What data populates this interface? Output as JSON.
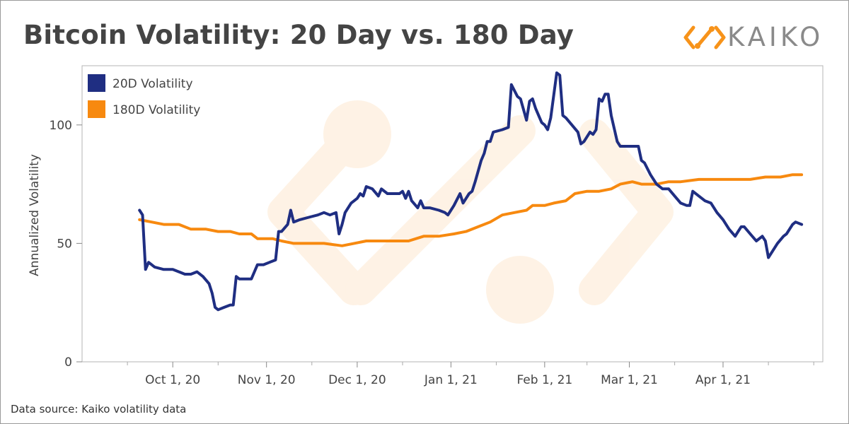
{
  "title": "Bitcoin Volatility: 20 Day vs. 180 Day",
  "brand": {
    "name": "KAIKO",
    "logo_icon": "kaiko-logo-icon",
    "color": "#f7931a"
  },
  "footer": {
    "source": "Data source: Kaiko volatility data"
  },
  "chart_data": {
    "type": "line",
    "title": "Bitcoin Volatility: 20 Day vs. 180 Day",
    "xlabel": "",
    "ylabel": "Annualized Volatility",
    "ylim": [
      0,
      125
    ],
    "yticks": [
      0,
      50,
      100
    ],
    "xrange": [
      "2020-09-01",
      "2021-05-04"
    ],
    "xticks": [
      {
        "date": "2020-10-01",
        "label": "Oct 1, 20"
      },
      {
        "date": "2020-11-01",
        "label": "Nov 1, 20"
      },
      {
        "date": "2020-12-01",
        "label": "Dec 1, 20"
      },
      {
        "date": "2021-01-01",
        "label": "Jan 1, 21"
      },
      {
        "date": "2021-02-01",
        "label": "Feb 1, 21"
      },
      {
        "date": "2021-03-01",
        "label": "Mar 1, 21"
      },
      {
        "date": "2021-04-01",
        "label": "Apr 1, 21"
      }
    ],
    "grid": false,
    "legend": "top-left",
    "series": [
      {
        "name": "20D Volatility",
        "color": "#1f2e82",
        "points": [
          [
            "2020-09-20",
            64
          ],
          [
            "2020-09-21",
            62
          ],
          [
            "2020-09-22",
            39
          ],
          [
            "2020-09-23",
            42
          ],
          [
            "2020-09-25",
            40
          ],
          [
            "2020-09-28",
            39
          ],
          [
            "2020-10-01",
            39
          ],
          [
            "2020-10-03",
            38
          ],
          [
            "2020-10-05",
            37
          ],
          [
            "2020-10-07",
            37
          ],
          [
            "2020-10-09",
            38
          ],
          [
            "2020-10-11",
            36
          ],
          [
            "2020-10-13",
            33
          ],
          [
            "2020-10-14",
            29
          ],
          [
            "2020-10-15",
            23
          ],
          [
            "2020-10-16",
            22
          ],
          [
            "2020-10-18",
            23
          ],
          [
            "2020-10-20",
            24
          ],
          [
            "2020-10-21",
            24
          ],
          [
            "2020-10-22",
            36
          ],
          [
            "2020-10-23",
            35
          ],
          [
            "2020-10-25",
            35
          ],
          [
            "2020-10-27",
            35
          ],
          [
            "2020-10-28",
            38
          ],
          [
            "2020-10-29",
            41
          ],
          [
            "2020-10-31",
            41
          ],
          [
            "2020-11-02",
            42
          ],
          [
            "2020-11-04",
            43
          ],
          [
            "2020-11-05",
            55
          ],
          [
            "2020-11-06",
            55
          ],
          [
            "2020-11-08",
            58
          ],
          [
            "2020-11-09",
            64
          ],
          [
            "2020-11-10",
            59
          ],
          [
            "2020-11-12",
            60
          ],
          [
            "2020-11-15",
            61
          ],
          [
            "2020-11-18",
            62
          ],
          [
            "2020-11-20",
            63
          ],
          [
            "2020-11-22",
            62
          ],
          [
            "2020-11-24",
            63
          ],
          [
            "2020-11-25",
            54
          ],
          [
            "2020-11-26",
            58
          ],
          [
            "2020-11-27",
            63
          ],
          [
            "2020-11-29",
            67
          ],
          [
            "2020-12-01",
            69
          ],
          [
            "2020-12-02",
            71
          ],
          [
            "2020-12-03",
            70
          ],
          [
            "2020-12-04",
            74
          ],
          [
            "2020-12-06",
            73
          ],
          [
            "2020-12-08",
            70
          ],
          [
            "2020-12-09",
            73
          ],
          [
            "2020-12-11",
            71
          ],
          [
            "2020-12-13",
            71
          ],
          [
            "2020-12-15",
            71
          ],
          [
            "2020-12-16",
            72
          ],
          [
            "2020-12-17",
            69
          ],
          [
            "2020-12-18",
            72
          ],
          [
            "2020-12-19",
            68
          ],
          [
            "2020-12-21",
            65
          ],
          [
            "2020-12-22",
            68
          ],
          [
            "2020-12-23",
            65
          ],
          [
            "2020-12-25",
            65
          ],
          [
            "2020-12-28",
            64
          ],
          [
            "2020-12-30",
            63
          ],
          [
            "2020-12-31",
            62
          ],
          [
            "2021-01-02",
            66
          ],
          [
            "2021-01-04",
            71
          ],
          [
            "2021-01-05",
            67
          ],
          [
            "2021-01-07",
            71
          ],
          [
            "2021-01-08",
            72
          ],
          [
            "2021-01-09",
            76
          ],
          [
            "2021-01-11",
            85
          ],
          [
            "2021-01-12",
            88
          ],
          [
            "2021-01-13",
            93
          ],
          [
            "2021-01-14",
            93
          ],
          [
            "2021-01-15",
            97
          ],
          [
            "2021-01-18",
            98
          ],
          [
            "2021-01-20",
            99
          ],
          [
            "2021-01-21",
            117
          ],
          [
            "2021-01-23",
            112
          ],
          [
            "2021-01-24",
            111
          ],
          [
            "2021-01-26",
            102
          ],
          [
            "2021-01-27",
            110
          ],
          [
            "2021-01-28",
            111
          ],
          [
            "2021-01-29",
            107
          ],
          [
            "2021-01-31",
            101
          ],
          [
            "2021-02-01",
            100
          ],
          [
            "2021-02-02",
            98
          ],
          [
            "2021-02-03",
            103
          ],
          [
            "2021-02-05",
            122
          ],
          [
            "2021-02-06",
            121
          ],
          [
            "2021-02-07",
            104
          ],
          [
            "2021-02-08",
            103
          ],
          [
            "2021-02-10",
            100
          ],
          [
            "2021-02-12",
            97
          ],
          [
            "2021-02-13",
            92
          ],
          [
            "2021-02-14",
            93
          ],
          [
            "2021-02-16",
            97
          ],
          [
            "2021-02-17",
            96
          ],
          [
            "2021-02-18",
            98
          ],
          [
            "2021-02-19",
            111
          ],
          [
            "2021-02-20",
            110
          ],
          [
            "2021-02-21",
            113
          ],
          [
            "2021-02-22",
            113
          ],
          [
            "2021-02-23",
            104
          ],
          [
            "2021-02-25",
            93
          ],
          [
            "2021-02-26",
            91
          ],
          [
            "2021-02-27",
            91
          ],
          [
            "2021-03-02",
            91
          ],
          [
            "2021-03-04",
            91
          ],
          [
            "2021-03-05",
            85
          ],
          [
            "2021-03-06",
            84
          ],
          [
            "2021-03-08",
            79
          ],
          [
            "2021-03-10",
            75
          ],
          [
            "2021-03-12",
            73
          ],
          [
            "2021-03-14",
            73
          ],
          [
            "2021-03-16",
            70
          ],
          [
            "2021-03-18",
            67
          ],
          [
            "2021-03-20",
            66
          ],
          [
            "2021-03-21",
            66
          ],
          [
            "2021-03-22",
            72
          ],
          [
            "2021-03-24",
            70
          ],
          [
            "2021-03-26",
            68
          ],
          [
            "2021-03-28",
            67
          ],
          [
            "2021-03-30",
            63
          ],
          [
            "2021-04-01",
            60
          ],
          [
            "2021-04-03",
            56
          ],
          [
            "2021-04-05",
            53
          ],
          [
            "2021-04-06",
            55
          ],
          [
            "2021-04-07",
            57
          ],
          [
            "2021-04-08",
            57
          ],
          [
            "2021-04-10",
            54
          ],
          [
            "2021-04-12",
            51
          ],
          [
            "2021-04-14",
            53
          ],
          [
            "2021-04-15",
            51
          ],
          [
            "2021-04-16",
            44
          ],
          [
            "2021-04-17",
            46
          ],
          [
            "2021-04-19",
            50
          ],
          [
            "2021-04-21",
            53
          ],
          [
            "2021-04-22",
            54
          ],
          [
            "2021-04-24",
            58
          ],
          [
            "2021-04-25",
            59
          ],
          [
            "2021-04-27",
            58
          ]
        ]
      },
      {
        "name": "180D Volatility",
        "color": "#f7890f",
        "points": [
          [
            "2020-09-20",
            60
          ],
          [
            "2020-09-24",
            59
          ],
          [
            "2020-09-28",
            58
          ],
          [
            "2020-10-03",
            58
          ],
          [
            "2020-10-07",
            56
          ],
          [
            "2020-10-12",
            56
          ],
          [
            "2020-10-16",
            55
          ],
          [
            "2020-10-20",
            55
          ],
          [
            "2020-10-23",
            54
          ],
          [
            "2020-10-27",
            54
          ],
          [
            "2020-10-29",
            52
          ],
          [
            "2020-11-03",
            52
          ],
          [
            "2020-11-06",
            51
          ],
          [
            "2020-11-10",
            50
          ],
          [
            "2020-11-15",
            50
          ],
          [
            "2020-11-20",
            50
          ],
          [
            "2020-11-26",
            49
          ],
          [
            "2020-11-30",
            50
          ],
          [
            "2020-12-04",
            51
          ],
          [
            "2020-12-09",
            51
          ],
          [
            "2020-12-13",
            51
          ],
          [
            "2020-12-18",
            51
          ],
          [
            "2020-12-23",
            53
          ],
          [
            "2020-12-28",
            53
          ],
          [
            "2021-01-02",
            54
          ],
          [
            "2021-01-06",
            55
          ],
          [
            "2021-01-10",
            57
          ],
          [
            "2021-01-14",
            59
          ],
          [
            "2021-01-18",
            62
          ],
          [
            "2021-01-22",
            63
          ],
          [
            "2021-01-26",
            64
          ],
          [
            "2021-01-28",
            66
          ],
          [
            "2021-02-01",
            66
          ],
          [
            "2021-02-04",
            67
          ],
          [
            "2021-02-08",
            68
          ],
          [
            "2021-02-11",
            71
          ],
          [
            "2021-02-15",
            72
          ],
          [
            "2021-02-19",
            72
          ],
          [
            "2021-02-23",
            73
          ],
          [
            "2021-02-26",
            75
          ],
          [
            "2021-03-02",
            76
          ],
          [
            "2021-03-05",
            75
          ],
          [
            "2021-03-10",
            75
          ],
          [
            "2021-03-14",
            76
          ],
          [
            "2021-03-18",
            76
          ],
          [
            "2021-03-24",
            77
          ],
          [
            "2021-03-30",
            77
          ],
          [
            "2021-04-05",
            77
          ],
          [
            "2021-04-10",
            77
          ],
          [
            "2021-04-15",
            78
          ],
          [
            "2021-04-20",
            78
          ],
          [
            "2021-04-24",
            79
          ],
          [
            "2021-04-27",
            79
          ]
        ]
      }
    ]
  }
}
